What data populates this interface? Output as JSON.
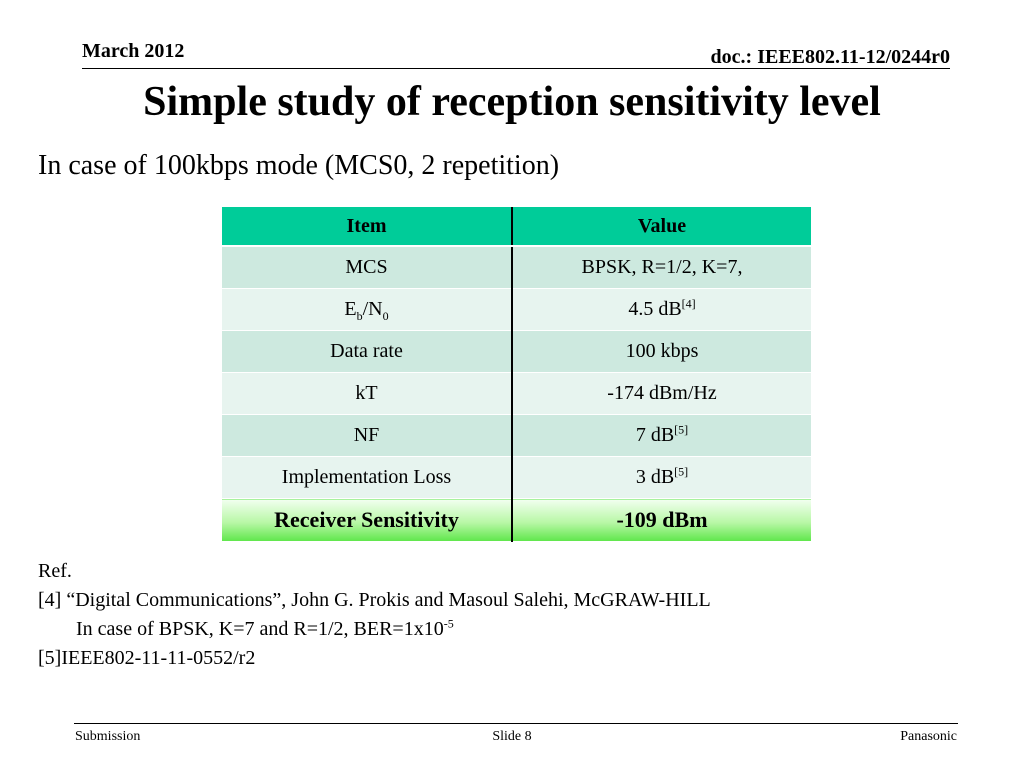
{
  "header": {
    "date": "March 2012",
    "doc_id": "doc.: IEEE802.11-12/0244r0"
  },
  "title": "Simple study of reception sensitivity level",
  "subtitle": "In case of 100kbps mode (MCS0, 2 repetition)",
  "table": {
    "headers": [
      "Item",
      "Value"
    ],
    "rows": {
      "mcs": {
        "item": "MCS",
        "value": "BPSK, R=1/2, K=7,"
      },
      "ebn0": {
        "item_main": "E",
        "item_sub1": "b",
        "item_mid": "/N",
        "item_sub2": "0",
        "value": "4.5 dB",
        "ref": "[4]"
      },
      "data_rate": {
        "item": "Data rate",
        "value": "100 kbps"
      },
      "kt": {
        "item": "kT",
        "value": "-174 dBm/Hz"
      },
      "nf": {
        "item": "NF",
        "value": "7 dB",
        "ref": "[5]"
      },
      "impl_loss": {
        "item": "Implementation Loss",
        "value": "3 dB",
        "ref": "[5]"
      },
      "sensitivity": {
        "item": "Receiver Sensitivity",
        "value": "-109 dBm"
      }
    },
    "colors": {
      "header": "#00cc99",
      "row_dark": "#cde9df",
      "row_light": "#e7f4ef",
      "result_green": "#5ee64a"
    }
  },
  "references": {
    "heading": "Ref.",
    "ref4": "[4] “Digital Communications”, John G. Prokis and Masoul Salehi, McGRAW-HILL",
    "ref4_note": "In case of BPSK, K=7 and R=1/2, BER=1x10",
    "ref4_note_exp": "-5",
    "ref5": "[5]IEEE802-11-11-0552/r2"
  },
  "footer": {
    "left": "Submission",
    "center": "Slide 8",
    "right": "Panasonic"
  }
}
